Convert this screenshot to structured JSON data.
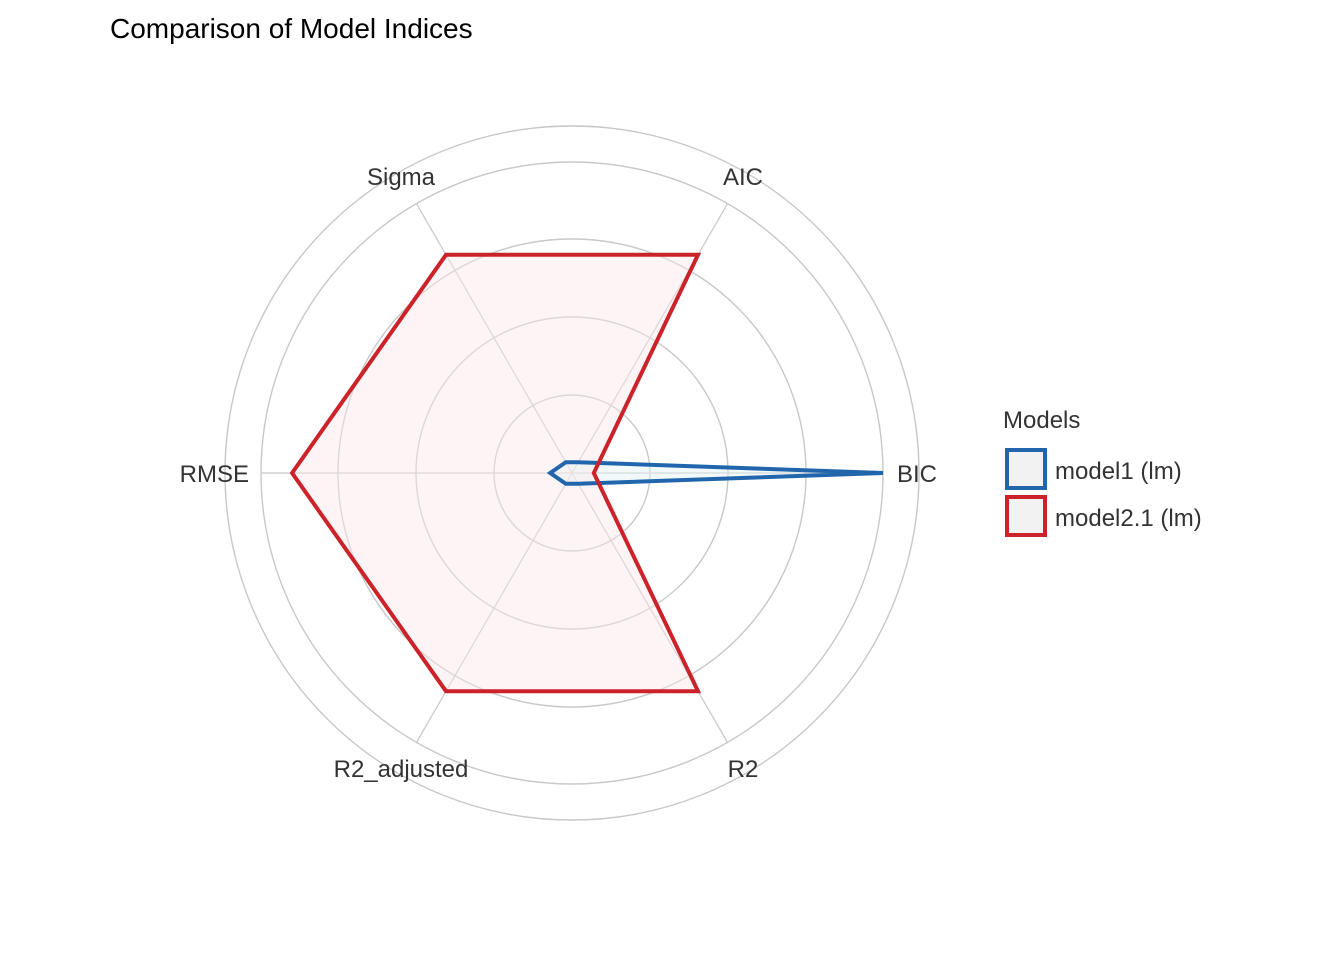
{
  "chart_data": {
    "type": "radar",
    "title": "Comparison of Model Indices",
    "axes": [
      "BIC",
      "AIC",
      "Sigma",
      "RMSE",
      "R2_adjusted",
      "R2"
    ],
    "rlim": [
      0,
      1
    ],
    "grid": true,
    "legend": {
      "title": "Models",
      "position": "right"
    },
    "series": [
      {
        "name": "model1 (lm)",
        "color": "#2166ac",
        "fill": "#dff1f6",
        "values": [
          1.0,
          0.04,
          0.04,
          0.07,
          0.04,
          0.04
        ]
      },
      {
        "name": "model2.1 (lm)",
        "color": "#cc2229",
        "fill": "#fbe8e8",
        "values": [
          0.07,
          0.81,
          0.81,
          0.9,
          0.81,
          0.81
        ]
      }
    ]
  }
}
